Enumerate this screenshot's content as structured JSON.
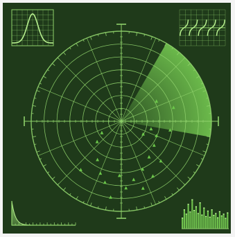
{
  "radar": {
    "background_color": "#1f3a1a",
    "frame_color": "#f4f4f4",
    "line_color": "#8fd16b",
    "sweep_color": "#7ed957",
    "blip_color": "#6cc84a",
    "rings": 7,
    "radial_spokes": 16,
    "sweep_start_deg": -60,
    "sweep_end_deg": 10
  },
  "blips": [
    {
      "angle_deg": 10,
      "distance": 0.55
    },
    {
      "angle_deg": 14,
      "distance": 0.34
    },
    {
      "angle_deg": 22,
      "distance": 0.42
    },
    {
      "angle_deg": 30,
      "distance": 0.28
    },
    {
      "angle_deg": 36,
      "distance": 0.45
    },
    {
      "angle_deg": 45,
      "distance": 0.62
    },
    {
      "angle_deg": 52,
      "distance": 0.5
    },
    {
      "angle_deg": 60,
      "distance": 0.7
    },
    {
      "angle_deg": 66,
      "distance": 0.58
    },
    {
      "angle_deg": 72,
      "distance": 0.78
    },
    {
      "angle_deg": 78,
      "distance": 0.66
    },
    {
      "angle_deg": 86,
      "distance": 0.74
    },
    {
      "angle_deg": 92,
      "distance": 0.6
    },
    {
      "angle_deg": 98,
      "distance": 0.85
    },
    {
      "angle_deg": 105,
      "distance": 0.7
    },
    {
      "angle_deg": 112,
      "distance": 0.62
    },
    {
      "angle_deg": 122,
      "distance": 0.5
    },
    {
      "angle_deg": 130,
      "distance": 0.7
    },
    {
      "angle_deg": 140,
      "distance": 0.35
    },
    {
      "angle_deg": 150,
      "distance": 0.25
    },
    {
      "angle_deg": -30,
      "distance": 0.45
    },
    {
      "angle_deg": -15,
      "distance": 0.6
    }
  ],
  "widgets": {
    "gaussian": {
      "label": "gaussian-curve-graph"
    },
    "tangent": {
      "label": "tangent-curves-graph"
    },
    "decay": {
      "label": "decay-curve-graph"
    },
    "spectrum": {
      "bars": [
        0.35,
        0.62,
        0.48,
        0.8,
        0.55,
        0.95,
        0.6,
        0.72,
        0.5,
        0.85,
        0.45,
        0.68,
        0.4,
        0.58,
        0.38,
        0.62,
        0.44,
        0.5,
        0.36,
        0.56,
        0.42,
        0.48,
        0.34,
        0.52
      ]
    }
  }
}
